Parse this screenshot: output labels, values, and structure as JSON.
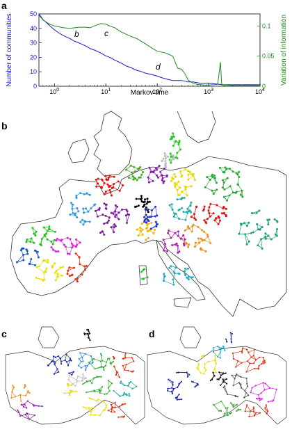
{
  "panels": {
    "a": "a",
    "b": "b",
    "c": "c",
    "d": "d"
  },
  "colors": {
    "left_axis": "#1515d0",
    "right_axis": "#1a8a1a",
    "sea_outline": "#333333",
    "network_edges": "#555555"
  },
  "chart_data": {
    "type": "line",
    "xlabel": "Markov time",
    "x_scale": "log",
    "xlim": [
      0.5,
      10000
    ],
    "x_ticks": [
      "10^0",
      "10^1",
      "10^2",
      "10^3",
      "10^4"
    ],
    "ylabel_left": "Number of communities",
    "ylim_left": [
      0,
      50
    ],
    "y_ticks_left": [
      "0",
      "10",
      "20",
      "30",
      "40",
      "50"
    ],
    "ylabel_right": "Variation of information",
    "ylim_right": [
      0,
      0.12
    ],
    "y_ticks_right": [
      "0",
      "0.05",
      "0.1"
    ],
    "series": [
      {
        "axis": "left",
        "color": "#1515d0",
        "x": [
          0.5,
          0.55,
          0.6,
          0.7,
          0.8,
          1.0,
          1.2,
          1.5,
          2,
          2.5,
          3,
          4,
          5,
          6,
          8,
          10,
          12,
          15,
          20,
          25,
          30,
          40,
          50,
          60,
          80,
          100,
          120,
          150,
          200,
          300,
          400,
          500,
          700,
          1000,
          2000,
          5000,
          10000
        ],
        "y": [
          50,
          48,
          46,
          44,
          42,
          39,
          37,
          35,
          33,
          31,
          30,
          28,
          26,
          25,
          23,
          21,
          20,
          18,
          16,
          14,
          13,
          11,
          10,
          9,
          8,
          7,
          6,
          5,
          4,
          4,
          3,
          3,
          2,
          2,
          1,
          1,
          1
        ]
      },
      {
        "axis": "right",
        "color": "#1a8a1a",
        "x": [
          0.5,
          0.6,
          0.8,
          1.0,
          1.5,
          2,
          3,
          4,
          5,
          6,
          8,
          10,
          12,
          15,
          20,
          30,
          40,
          60,
          80,
          100,
          150,
          200,
          250,
          300,
          350,
          400,
          500,
          600,
          800,
          1000,
          1500,
          1700,
          1800,
          2000,
          3000,
          5000,
          10000
        ],
        "y": [
          0.118,
          0.11,
          0.103,
          0.1,
          0.097,
          0.096,
          0.098,
          0.098,
          0.097,
          0.1,
          0.104,
          0.103,
          0.1,
          0.097,
          0.09,
          0.083,
          0.079,
          0.07,
          0.063,
          0.058,
          0.055,
          0.05,
          0.03,
          0.028,
          0.02,
          0.01,
          0.005,
          0.003,
          0.002,
          0.002,
          0.003,
          0.04,
          0.002,
          0.002,
          0.001,
          0.001,
          0.001
        ]
      }
    ],
    "annotations": [
      "b",
      "c",
      "d"
    ]
  }
}
